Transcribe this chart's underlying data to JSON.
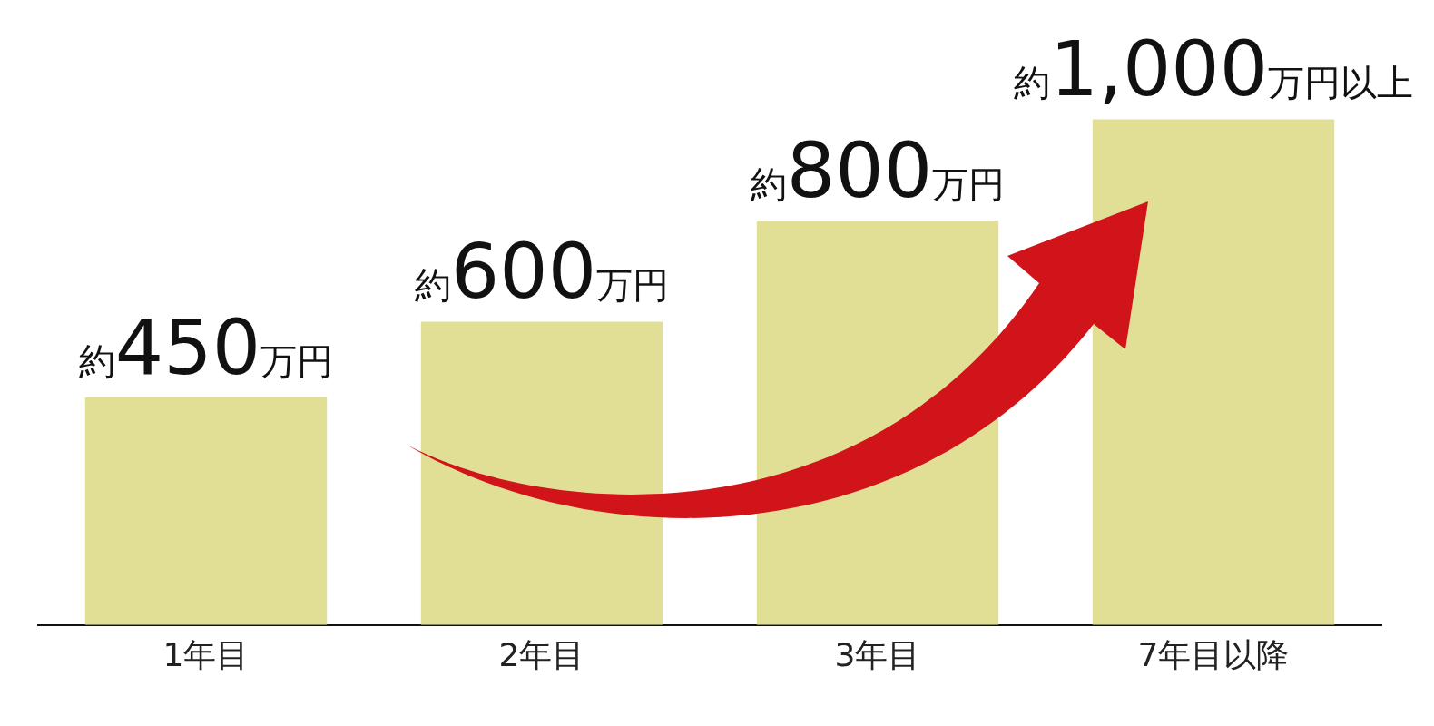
{
  "chart_data": {
    "type": "bar",
    "categories": [
      "1年目",
      "2年目",
      "3年目",
      "7年目以降"
    ],
    "values": [
      450,
      600,
      800,
      1000
    ],
    "value_labels": [
      "約450万円",
      "約600万円",
      "約800万円",
      "約1,000万円以上"
    ],
    "color": "#e0df95",
    "grid": false,
    "legend": false
  }
}
